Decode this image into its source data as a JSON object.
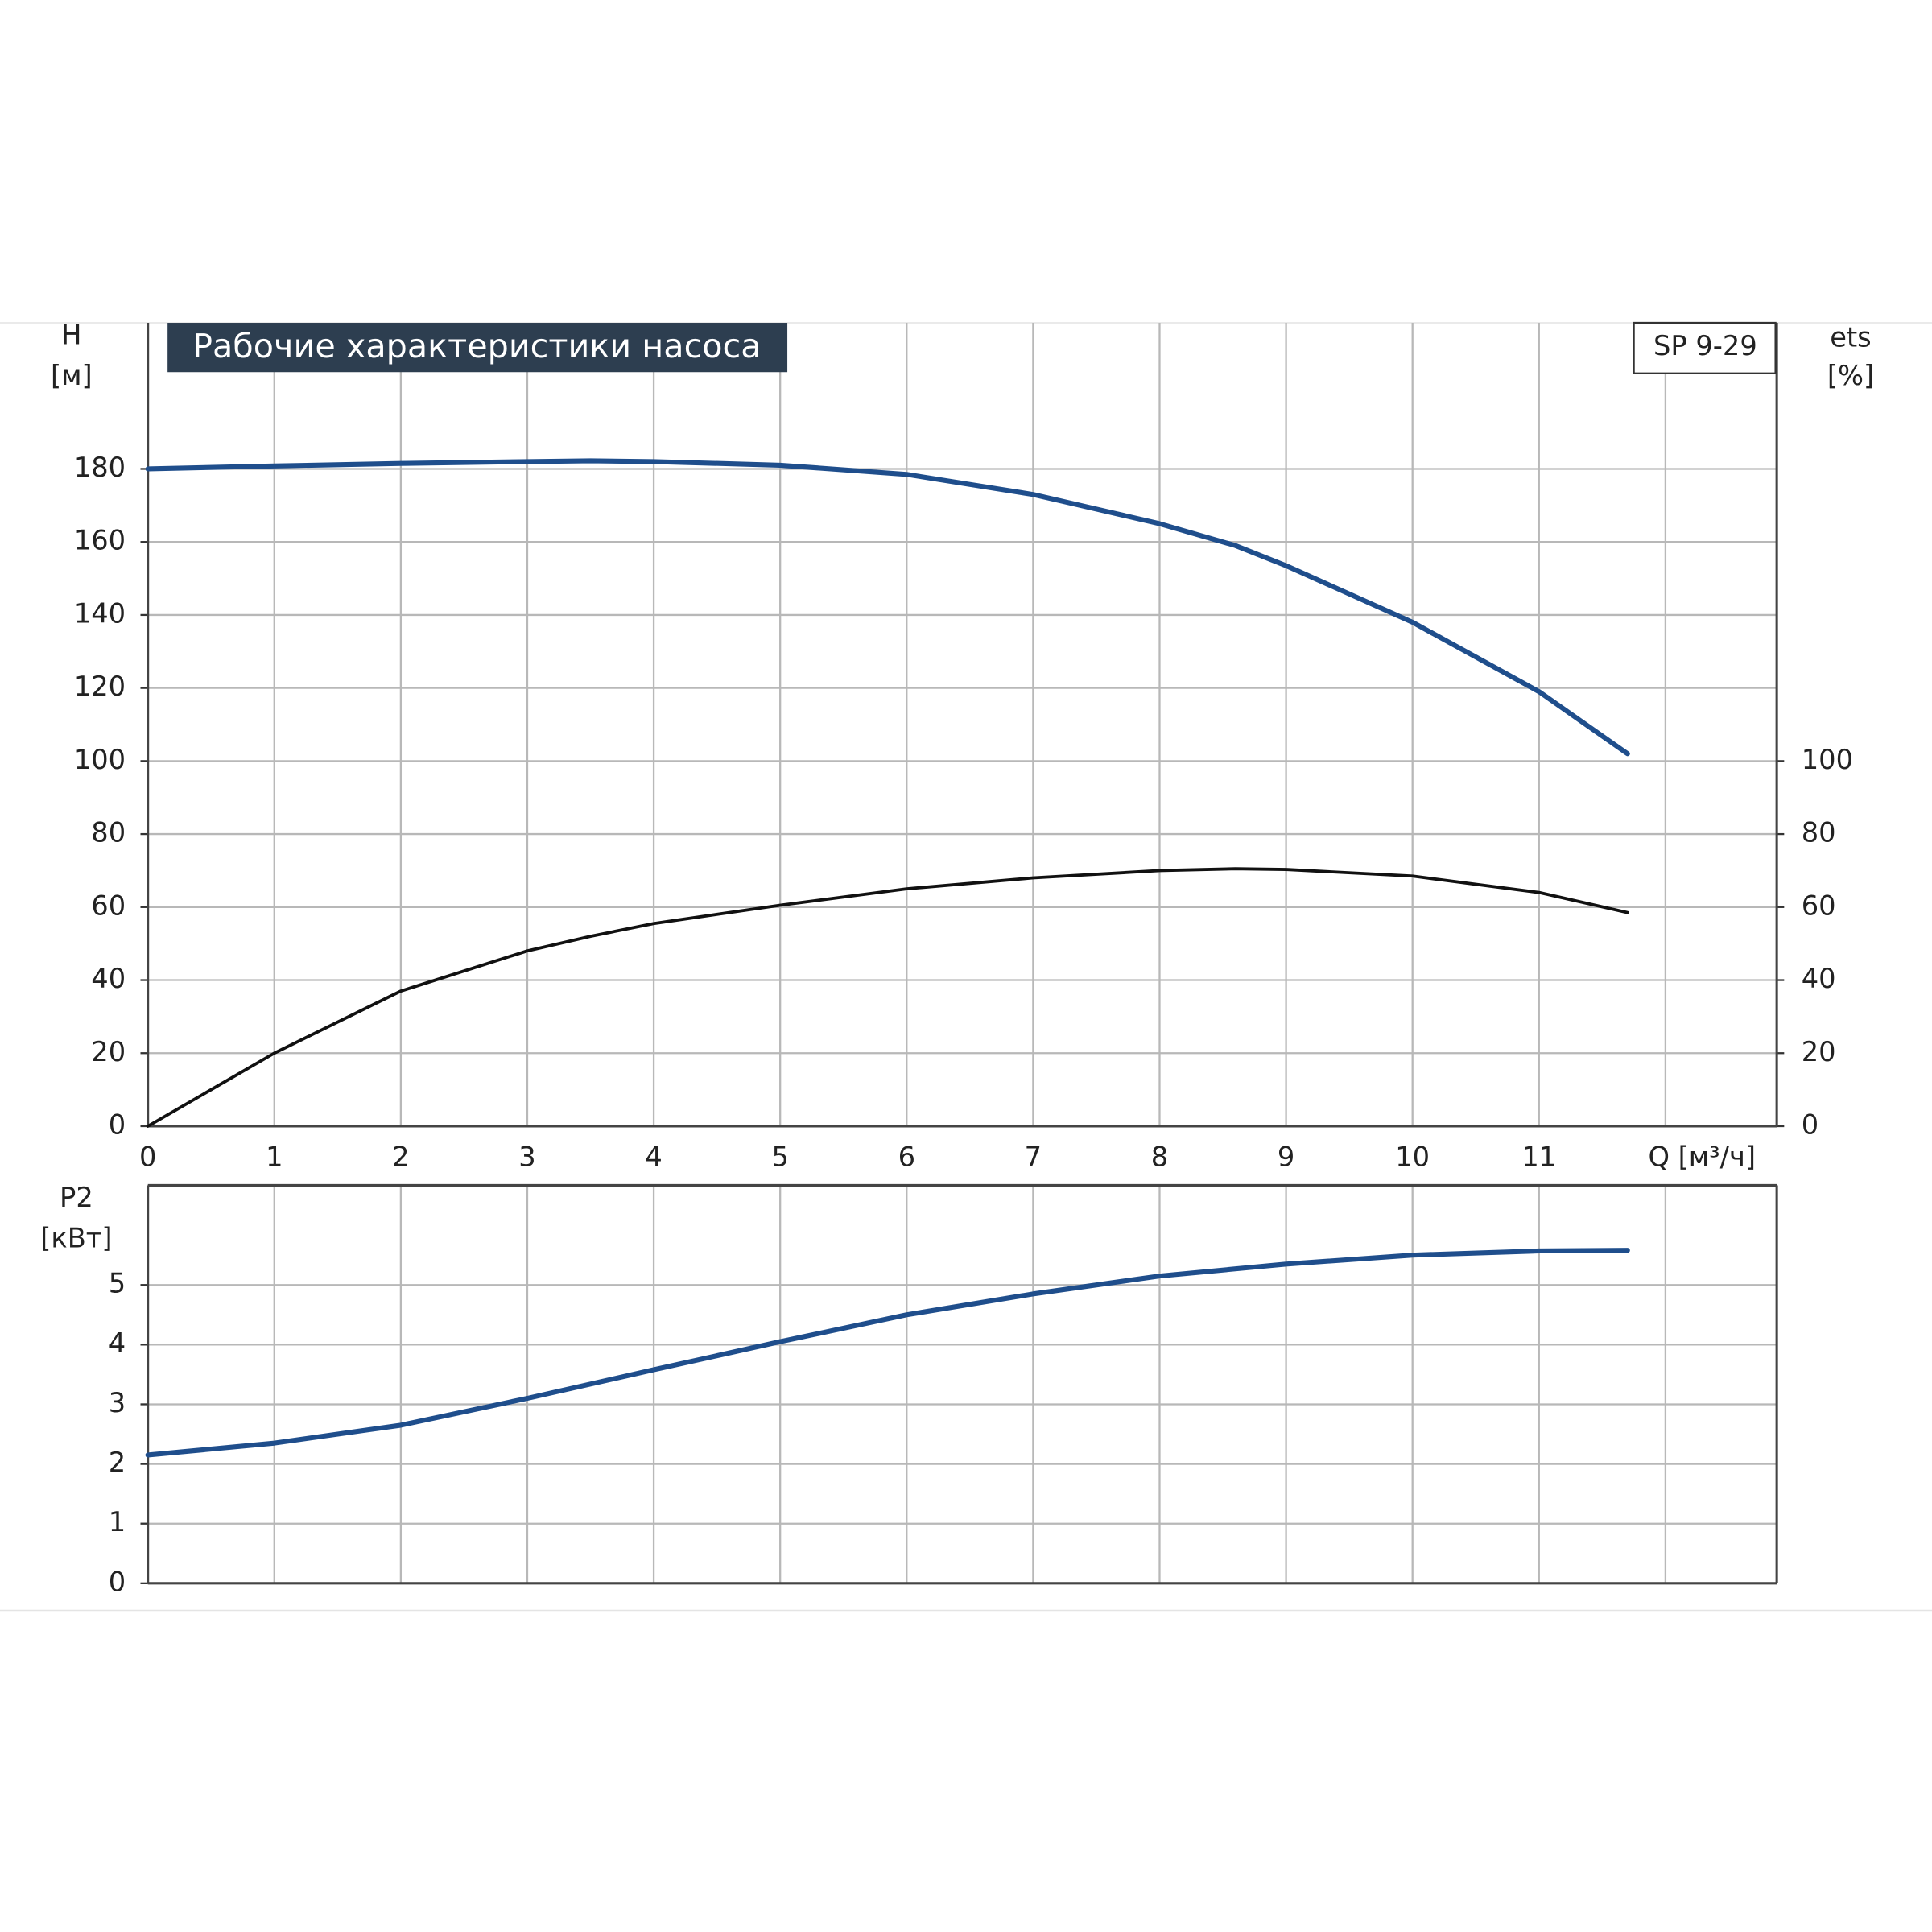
{
  "chart_data": [
    {
      "type": "line",
      "title": "Рабочие характеристики насоса",
      "model": "SP 9-29",
      "y_label": "H",
      "y_unit": "[м]",
      "y2_label": "ets",
      "y2_unit": "[%]",
      "xlim": [
        0,
        12.88
      ],
      "xticks": [
        0,
        1,
        2,
        3,
        4,
        5,
        6,
        7,
        8,
        9,
        10,
        11,
        {
          "value": 12,
          "label": "Q [м³/ч]"
        }
      ],
      "ylim": [
        0,
        220
      ],
      "yticks": [
        0,
        20,
        40,
        60,
        80,
        100,
        120,
        140,
        160,
        180
      ],
      "y2lim": [
        0,
        220
      ],
      "y2ticks": [
        0,
        20,
        40,
        60,
        80,
        100
      ],
      "grid": true,
      "x": [
        0,
        1,
        2,
        3,
        3.5,
        4,
        5,
        6,
        7,
        8,
        8.6,
        9,
        10,
        11,
        11.7
      ],
      "series": [
        {
          "color": "#1f4e8c",
          "values": [
            180,
            180.8,
            181.5,
            182,
            182.2,
            182,
            181,
            178.5,
            173,
            165,
            159,
            153.5,
            138,
            119,
            102
          ]
        },
        {
          "color": "#111111",
          "axis": "y2",
          "values": [
            0,
            20,
            37,
            48,
            52,
            55.5,
            60.5,
            65,
            68,
            70,
            70.5,
            70.3,
            68.5,
            64,
            58.5
          ]
        }
      ]
    },
    {
      "type": "line",
      "y_label": "P2",
      "y_unit": "[кВт]",
      "xlim": [
        0,
        12.88
      ],
      "ylim": [
        0,
        6.67
      ],
      "yticks": [
        0,
        1,
        2,
        3,
        4,
        5
      ],
      "grid": true,
      "x": [
        0,
        1,
        2,
        3,
        4,
        5,
        6,
        7,
        8,
        9,
        10,
        11,
        11.7
      ],
      "series": [
        {
          "color": "#1f4e8c",
          "values": [
            2.15,
            2.35,
            2.65,
            3.1,
            3.58,
            4.05,
            4.5,
            4.85,
            5.15,
            5.35,
            5.5,
            5.57,
            5.58
          ]
        }
      ]
    }
  ]
}
